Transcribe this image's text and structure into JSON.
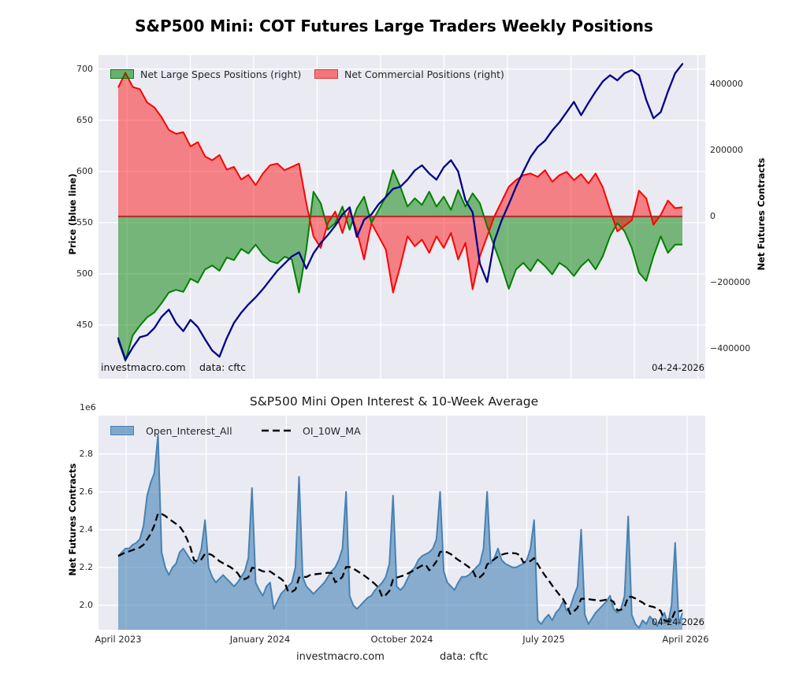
{
  "title": "S&P500 Mini: COT Futures Large Traders Weekly Positions",
  "footer": {
    "site": "investmacro.com",
    "source": "data: cftc"
  },
  "colors": {
    "figure_bg": "#ffffff",
    "axes_bg": "#eaeaf2",
    "grid": "#ffffff",
    "price_line": "#00008b",
    "specs_green": "#008000",
    "commercials_red": "#ff0000",
    "zero_line": "#b22222",
    "oi_line": "#4682b4",
    "ma_line": "#000000"
  },
  "chart_data": [
    {
      "type": "area",
      "title": "S&P500 Mini: COT Futures Large Traders Weekly Positions",
      "ylabel_left": "Price (blue line)",
      "ylabel_right": "Net Futures Contracts",
      "watermark": "investmacro.com",
      "source_note": "data: cftc",
      "date_note": "04-24-2026",
      "x_start": "April 2023",
      "x_end": "April 2026",
      "frequency": "biweekly (approx.)",
      "ylim_left": [
        397,
        716
      ],
      "ylim_right": [
        -490000,
        490000
      ],
      "grid": true,
      "legend_position": "top",
      "legend": [
        {
          "label": "Net Large Specs Positions (right)",
          "color": "green"
        },
        {
          "label": "Net Commercial Positions (right)",
          "color": "red"
        }
      ],
      "yticks_left": [
        700,
        650,
        600,
        550,
        500,
        450
      ],
      "yticks_right": [
        {
          "v": 400000,
          "label": "400000"
        },
        {
          "v": 200000,
          "label": "200000"
        },
        {
          "v": 0,
          "label": "0"
        },
        {
          "v": -200000,
          "label": "−200000"
        },
        {
          "v": -400000,
          "label": "−400000"
        }
      ],
      "series": [
        {
          "name": "Net Large Specs Positions",
          "axis": "right",
          "units": "contracts (thousands)",
          "values": [
            -375,
            -437,
            -360,
            -330,
            -305,
            -290,
            -262,
            -230,
            -222,
            -228,
            -188,
            -200,
            -160,
            -148,
            -164,
            -124,
            -132,
            -98,
            -112,
            -85,
            -115,
            -135,
            -142,
            -122,
            -130,
            -230,
            -100,
            75,
            40,
            -40,
            -20,
            30,
            -40,
            25,
            60,
            -20,
            20,
            60,
            140,
            90,
            30,
            55,
            35,
            75,
            30,
            60,
            20,
            80,
            30,
            70,
            40,
            -30,
            -90,
            -150,
            -219,
            -160,
            -140,
            -165,
            -130,
            -150,
            -175,
            -140,
            -155,
            -180,
            -150,
            -130,
            -160,
            -120,
            -60,
            -20,
            -45,
            -95,
            -170,
            -195,
            -120,
            -60,
            -110,
            -85,
            -85
          ]
        },
        {
          "name": "Net Commercial Positions",
          "axis": "right",
          "units": "contracts (thousands)",
          "values": [
            390,
            435,
            392,
            385,
            345,
            330,
            300,
            262,
            250,
            255,
            212,
            225,
            182,
            170,
            186,
            142,
            150,
            112,
            126,
            95,
            130,
            155,
            160,
            140,
            150,
            160,
            40,
            -60,
            -95,
            -20,
            15,
            -50,
            20,
            -45,
            -130,
            -20,
            -60,
            -100,
            -230,
            -150,
            -60,
            -90,
            -70,
            -110,
            -60,
            -95,
            -50,
            -130,
            -80,
            -220,
            -120,
            -60,
            0,
            45,
            90,
            110,
            125,
            130,
            120,
            140,
            105,
            125,
            135,
            110,
            128,
            100,
            130,
            88,
            20,
            -45,
            -28,
            -12,
            78,
            55,
            -25,
            5,
            48,
            25,
            28
          ]
        },
        {
          "name": "Price",
          "axis": "left",
          "units": "index points (blue line)",
          "values": [
            437,
            416,
            428,
            438,
            440,
            447,
            458,
            465,
            452,
            444,
            455,
            448,
            436,
            425,
            419,
            437,
            452,
            462,
            470,
            477,
            485,
            494,
            503,
            510,
            517,
            521,
            505,
            520,
            530,
            538,
            547,
            558,
            565,
            536,
            553,
            558,
            568,
            575,
            583,
            585,
            592,
            601,
            606,
            598,
            592,
            604,
            611,
            600,
            572,
            560,
            510,
            492,
            532,
            552,
            568,
            585,
            600,
            614,
            624,
            630,
            640,
            648,
            658,
            668,
            655,
            667,
            678,
            688,
            694,
            689,
            696,
            699,
            694,
            670,
            652,
            658,
            678,
            696,
            705
          ]
        }
      ]
    },
    {
      "type": "area",
      "title": "S&P500 Mini Open Interest & 10-Week Average",
      "ylabel": "Net Futures Contracts",
      "offset_label": "1e6",
      "date_note": "04-24-2026",
      "grid": true,
      "frequency": "weekly",
      "ylim": [
        1.87,
        3.0
      ],
      "legend": [
        {
          "label": "Open_Interest_All",
          "color": "steelblue"
        },
        {
          "label": "OI_10W_MA",
          "color": "black",
          "style": "dashed"
        }
      ],
      "yticks": [
        {
          "v": 2.8,
          "label": "2.8"
        },
        {
          "v": 2.6,
          "label": "2.6"
        },
        {
          "v": 2.4,
          "label": "2.4"
        },
        {
          "v": 2.2,
          "label": "2.2"
        },
        {
          "v": 2.0,
          "label": "2.0"
        }
      ],
      "xticklabels": [
        "April 2023",
        "January 2024",
        "October 2024",
        "July 2025",
        "April 2026"
      ],
      "series": [
        {
          "name": "Open_Interest_All",
          "units": "millions of contracts (1e6)",
          "values": [
            2.26,
            2.28,
            2.3,
            2.3,
            2.32,
            2.33,
            2.35,
            2.42,
            2.58,
            2.65,
            2.7,
            2.9,
            2.28,
            2.2,
            2.16,
            2.2,
            2.22,
            2.28,
            2.3,
            2.27,
            2.24,
            2.22,
            2.24,
            2.3,
            2.45,
            2.2,
            2.15,
            2.12,
            2.14,
            2.16,
            2.14,
            2.12,
            2.1,
            2.12,
            2.15,
            2.18,
            2.25,
            2.62,
            2.12,
            2.08,
            2.05,
            2.1,
            2.12,
            1.98,
            2.02,
            2.06,
            2.08,
            2.1,
            2.12,
            2.2,
            2.68,
            2.15,
            2.1,
            2.08,
            2.06,
            2.08,
            2.1,
            2.12,
            2.15,
            2.18,
            2.2,
            2.24,
            2.3,
            2.6,
            2.05,
            2.0,
            1.98,
            2.0,
            2.02,
            2.04,
            2.05,
            2.08,
            2.1,
            2.12,
            2.15,
            2.22,
            2.58,
            2.1,
            2.08,
            2.1,
            2.14,
            2.18,
            2.2,
            2.24,
            2.26,
            2.27,
            2.28,
            2.3,
            2.35,
            2.6,
            2.18,
            2.12,
            2.1,
            2.08,
            2.12,
            2.15,
            2.15,
            2.16,
            2.18,
            2.2,
            2.22,
            2.3,
            2.6,
            2.22,
            2.25,
            2.3,
            2.24,
            2.22,
            2.21,
            2.2,
            2.2,
            2.21,
            2.22,
            2.24,
            2.3,
            2.45,
            1.92,
            1.9,
            1.93,
            1.95,
            1.92,
            1.96,
            1.98,
            2.02,
            1.97,
            1.99,
            2.05,
            2.1,
            2.4,
            1.95,
            1.9,
            1.93,
            1.96,
            1.98,
            2.0,
            2.02,
            2.05,
            1.98,
            1.96,
            1.98,
            2.05,
            2.47,
            1.95,
            1.9,
            1.88,
            1.92,
            1.9,
            1.94,
            1.92,
            1.89,
            1.93,
            1.96,
            1.9,
            2.0,
            2.33,
            1.9,
            1.96
          ]
        },
        {
          "name": "OI_10W_MA",
          "derived": "10-week moving average of Open_Interest_All"
        }
      ]
    }
  ]
}
